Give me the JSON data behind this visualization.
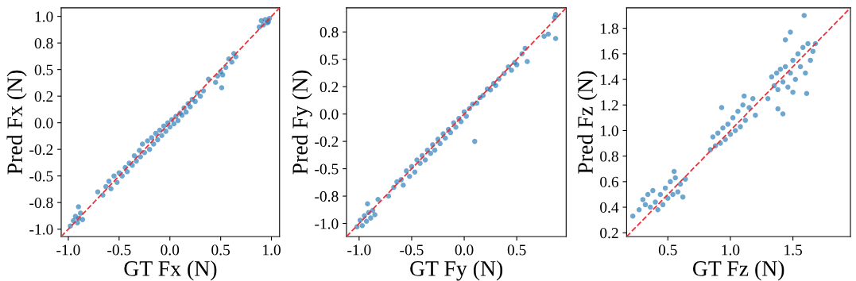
{
  "chart_data": [
    {
      "type": "scatter",
      "xlabel": "GT Fx (N)",
      "ylabel": "Pred Fx (N)",
      "xlim": [
        -1.07,
        1.08
      ],
      "ylim": [
        -1.07,
        1.08
      ],
      "xticks": [
        {
          "value": -1,
          "label": "-1.0"
        },
        -0.5,
        {
          "value": 0,
          "label": "0.0"
        },
        0.5,
        {
          "value": 1,
          "label": "1.0"
        }
      ],
      "yticks": [
        {
          "value": -1,
          "label": "-1.0"
        },
        {
          "value": -0.75,
          "label": "-0.8"
        },
        -0.5,
        {
          "value": -0.25,
          "label": "-0.2"
        },
        {
          "value": 0,
          "label": "0.0"
        },
        {
          "value": 0.25,
          "label": "0.2"
        },
        0.5,
        {
          "value": 0.75,
          "label": "0.8"
        },
        {
          "value": 1,
          "label": "1.0"
        }
      ],
      "grid": false,
      "legend": false,
      "series": [
        {
          "marker": "circle",
          "color": "#1f77b4",
          "x": [
            -0.98,
            -0.95,
            -0.93,
            -0.91,
            -0.9,
            -0.88,
            -0.86,
            -0.9,
            -0.71,
            -0.66,
            -0.63,
            -0.6,
            -0.58,
            -0.55,
            -0.52,
            -0.5,
            -0.47,
            -0.44,
            -0.42,
            -0.4,
            -0.37,
            -0.35,
            -0.33,
            -0.3,
            -0.29,
            -0.27,
            -0.25,
            -0.22,
            -0.2,
            -0.18,
            -0.16,
            -0.14,
            -0.12,
            -0.1,
            -0.08,
            -0.06,
            -0.04,
            -0.02,
            0.0,
            0.02,
            0.04,
            0.06,
            0.08,
            0.1,
            0.12,
            0.14,
            0.16,
            0.18,
            0.2,
            0.22,
            0.25,
            0.27,
            0.3,
            0.33,
            0.38,
            0.45,
            0.47,
            0.5,
            0.52,
            0.51,
            0.55,
            0.58,
            0.61,
            0.63,
            0.65,
            0.88,
            0.9,
            0.92,
            0.94,
            0.96,
            0.98,
            0.97
          ],
          "values": [
            -0.97,
            -0.92,
            -0.88,
            -0.94,
            -0.9,
            -0.85,
            -0.91,
            -0.79,
            -0.65,
            -0.68,
            -0.6,
            -0.55,
            -0.62,
            -0.5,
            -0.56,
            -0.47,
            -0.5,
            -0.42,
            -0.46,
            -0.38,
            -0.4,
            -0.31,
            -0.36,
            -0.26,
            -0.32,
            -0.2,
            -0.28,
            -0.17,
            -0.25,
            -0.14,
            -0.2,
            -0.1,
            -0.16,
            -0.07,
            -0.12,
            -0.03,
            -0.08,
            0.0,
            -0.04,
            0.03,
            -0.01,
            0.06,
            0.02,
            0.09,
            0.07,
            0.14,
            0.1,
            0.18,
            0.15,
            0.22,
            0.2,
            0.28,
            0.25,
            0.3,
            0.41,
            0.38,
            0.44,
            0.48,
            0.45,
            0.33,
            0.52,
            0.6,
            0.57,
            0.65,
            0.62,
            0.9,
            0.96,
            0.92,
            0.97,
            0.94,
            0.98,
            0.95
          ]
        },
        {
          "type": "line",
          "color": "#e8333a",
          "line_style": "dashed",
          "x": [
            -1.07,
            1.08
          ],
          "values": [
            -1.07,
            1.08
          ]
        }
      ]
    },
    {
      "type": "scatter",
      "xlabel": "GT Fy (N)",
      "ylabel": "Pred Fy (N)",
      "xlim": [
        -1.12,
        0.97
      ],
      "ylim": [
        -1.12,
        0.97
      ],
      "xticks": [
        {
          "value": -1,
          "label": "-1.0"
        },
        -0.5,
        {
          "value": 0,
          "label": "0.0"
        },
        0.5
      ],
      "yticks": [
        {
          "value": -1,
          "label": "-1.0"
        },
        {
          "value": -0.75,
          "label": "-0.8"
        },
        -0.5,
        {
          "value": -0.25,
          "label": "-0.2"
        },
        {
          "value": 0,
          "label": "0.0"
        },
        {
          "value": 0.25,
          "label": "0.2"
        },
        0.5,
        {
          "value": 0.75,
          "label": "0.8"
        }
      ],
      "grid": false,
      "legend": false,
      "series": [
        {
          "marker": "circle",
          "color": "#1f77b4",
          "x": [
            -1.02,
            -0.99,
            -0.97,
            -0.95,
            -0.93,
            -0.91,
            -0.89,
            -0.87,
            -0.85,
            -0.92,
            -0.82,
            -0.72,
            -0.67,
            -0.64,
            -0.6,
            -0.58,
            -0.55,
            -0.52,
            -0.5,
            -0.47,
            -0.45,
            -0.42,
            -0.4,
            -0.37,
            -0.35,
            -0.32,
            -0.3,
            -0.28,
            -0.25,
            -0.23,
            -0.2,
            -0.18,
            -0.15,
            -0.13,
            -0.1,
            -0.08,
            -0.05,
            -0.03,
            0.0,
            0.02,
            0.05,
            0.1,
            0.08,
            0.12,
            0.15,
            0.18,
            0.22,
            0.25,
            0.28,
            0.3,
            0.33,
            0.38,
            0.42,
            0.45,
            0.48,
            0.5,
            0.55,
            0.58,
            0.6,
            0.76,
            0.8,
            0.87,
            0.86,
            0.87
          ],
          "values": [
            -1.03,
            -0.97,
            -1.02,
            -0.93,
            -0.98,
            -0.9,
            -0.95,
            -0.88,
            -0.92,
            -0.82,
            -0.78,
            -0.75,
            -0.67,
            -0.62,
            -0.6,
            -0.65,
            -0.52,
            -0.57,
            -0.48,
            -0.53,
            -0.42,
            -0.45,
            -0.38,
            -0.42,
            -0.33,
            -0.36,
            -0.28,
            -0.33,
            -0.23,
            -0.27,
            -0.18,
            -0.22,
            -0.14,
            -0.17,
            -0.08,
            -0.12,
            -0.04,
            -0.07,
            0.02,
            -0.02,
            0.05,
            -0.25,
            0.09,
            0.1,
            0.15,
            0.17,
            0.23,
            0.22,
            0.28,
            0.26,
            0.32,
            0.37,
            0.43,
            0.4,
            0.47,
            0.45,
            0.55,
            0.6,
            0.48,
            0.71,
            0.73,
            0.91,
            0.88,
            0.69
          ]
        },
        {
          "type": "line",
          "color": "#e8333a",
          "line_style": "dashed",
          "x": [
            -1.12,
            0.97
          ],
          "values": [
            -1.12,
            0.97
          ]
        }
      ]
    },
    {
      "type": "scatter",
      "xlabel": "GT Fz (N)",
      "ylabel": "Pred Fz (N)",
      "xlim": [
        0.17,
        1.96
      ],
      "ylim": [
        0.17,
        1.96
      ],
      "xticks": [
        0.5,
        {
          "value": 1,
          "label": "1.0"
        },
        1.5
      ],
      "yticks": [
        0.2,
        0.4,
        0.6,
        0.8,
        {
          "value": 1,
          "label": "1.0"
        },
        1.2,
        1.4,
        1.6,
        1.8
      ],
      "grid": false,
      "legend": false,
      "series": [
        {
          "marker": "circle",
          "color": "#1f77b4",
          "x": [
            0.22,
            0.27,
            0.3,
            0.32,
            0.34,
            0.36,
            0.38,
            0.4,
            0.42,
            0.44,
            0.46,
            0.48,
            0.5,
            0.52,
            0.54,
            0.56,
            0.58,
            0.6,
            0.62,
            0.64,
            0.55,
            0.84,
            0.86,
            0.88,
            0.9,
            0.92,
            0.94,
            0.96,
            0.98,
            1.0,
            1.02,
            1.04,
            1.06,
            1.08,
            1.1,
            1.12,
            1.15,
            1.18,
            0.93,
            1.11,
            1.2,
            1.3,
            1.33,
            1.35,
            1.37,
            1.38,
            1.4,
            1.42,
            1.44,
            1.46,
            1.48,
            1.5,
            1.52,
            1.54,
            1.56,
            1.58,
            1.6,
            1.62,
            1.64,
            1.66,
            1.68,
            1.59,
            1.48,
            1.44,
            1.42,
            1.38,
            1.61,
            1.5
          ],
          "values": [
            0.33,
            0.38,
            0.46,
            0.42,
            0.5,
            0.4,
            0.53,
            0.44,
            0.38,
            0.5,
            0.42,
            0.55,
            0.47,
            0.6,
            0.5,
            0.63,
            0.52,
            0.58,
            0.48,
            0.62,
            0.68,
            0.85,
            0.95,
            0.88,
            0.98,
            0.9,
            1.02,
            0.93,
            1.05,
            0.97,
            1.1,
            1.0,
            1.15,
            1.03,
            1.2,
            1.08,
            1.18,
            1.25,
            1.18,
            1.27,
            1.12,
            1.25,
            1.42,
            1.35,
            1.45,
            1.32,
            1.48,
            1.38,
            1.5,
            1.34,
            1.45,
            1.55,
            1.4,
            1.6,
            1.5,
            1.65,
            1.45,
            1.68,
            1.55,
            1.62,
            1.68,
            1.9,
            1.77,
            1.71,
            1.13,
            1.17,
            1.29,
            1.3
          ]
        },
        {
          "type": "line",
          "color": "#e8333a",
          "line_style": "dashed",
          "x": [
            0.17,
            1.96
          ],
          "values": [
            0.17,
            1.96
          ]
        }
      ]
    }
  ]
}
